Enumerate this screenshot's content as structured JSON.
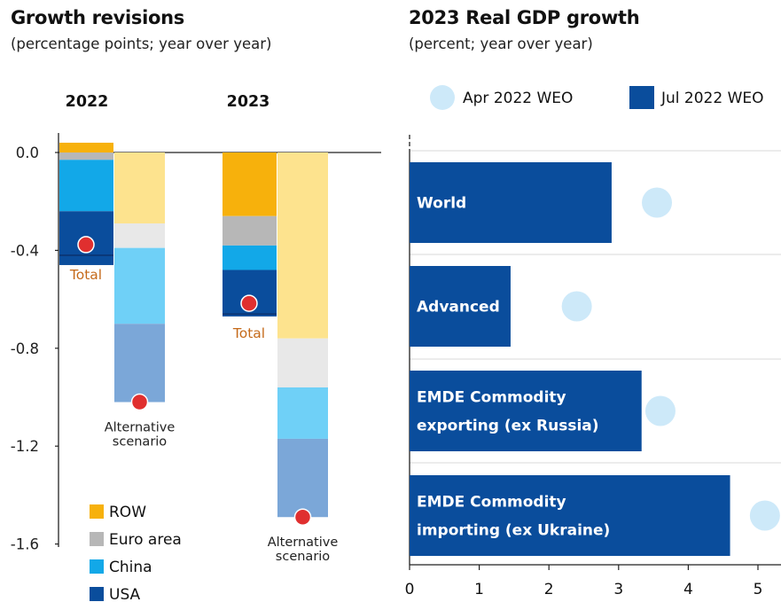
{
  "left_panel": {
    "title": "Growth revisions",
    "subtitle": "(percentage points; year over year)"
  },
  "right_panel": {
    "title": "2023 Real GDP growth",
    "subtitle": "(percent; year over year)"
  },
  "colors": {
    "ROW": "#f7b10c",
    "Euro area": "#b7b7b7",
    "China": "#12a8e8",
    "USA": "#0a4d9c",
    "ROW_alt": "#fde38e",
    "Euro area_alt": "#e8e8e8",
    "China_alt": "#6fd0f7",
    "USA_alt": "#7ba7d8",
    "apr": "#cde9f9",
    "jul": "#0a4d9c",
    "total_dot": "#e02f2f",
    "total_text": "#c56a1a"
  },
  "chart_data": [
    {
      "type": "bar",
      "stacked": true,
      "title": "Growth revisions",
      "subtitle": "(percentage points; year over year)",
      "ylim": [
        -1.6,
        0.0
      ],
      "yticks": [
        "0.0",
        "-0.4",
        "-0.8",
        "-1.2",
        "-1.6"
      ],
      "ytick_values": [
        0.0,
        -0.4,
        -0.8,
        -1.2,
        -1.6
      ],
      "grid": false,
      "legend_position": "bottom-left",
      "legend": [
        "ROW",
        "Euro area",
        "China",
        "USA"
      ],
      "groups": [
        {
          "label": "2022",
          "bars": [
            {
              "name": "baseline",
              "segments": [
                {
                  "series": "ROW",
                  "value": 0.04
                },
                {
                  "series": "Euro area",
                  "value": -0.03
                },
                {
                  "series": "China",
                  "value": -0.21
                },
                {
                  "series": "USA",
                  "value": -0.22
                }
              ],
              "total": -0.42,
              "total_label": "Total"
            },
            {
              "name": "alternative",
              "segments": [
                {
                  "series": "ROW",
                  "value": -0.29
                },
                {
                  "series": "Euro area",
                  "value": -0.1
                },
                {
                  "series": "China",
                  "value": -0.31
                },
                {
                  "series": "USA",
                  "value": -0.32
                }
              ],
              "total": -1.02,
              "total_label": "Alternative scenario"
            }
          ]
        },
        {
          "label": "2023",
          "bars": [
            {
              "name": "baseline",
              "segments": [
                {
                  "series": "ROW",
                  "value": -0.26
                },
                {
                  "series": "Euro area",
                  "value": -0.12
                },
                {
                  "series": "China",
                  "value": -0.1
                },
                {
                  "series": "USA",
                  "value": -0.19
                }
              ],
              "total": -0.66,
              "total_label": "Total"
            },
            {
              "name": "alternative",
              "segments": [
                {
                  "series": "ROW",
                  "value": -0.76
                },
                {
                  "series": "Euro area",
                  "value": -0.2
                },
                {
                  "series": "China",
                  "value": -0.21
                },
                {
                  "series": "USA",
                  "value": -0.32
                }
              ],
              "total": -1.49,
              "total_label": "Alternative scenario"
            }
          ]
        }
      ]
    },
    {
      "type": "bar",
      "orientation": "horizontal",
      "title": "2023 Real GDP growth",
      "subtitle": "(percent; year over year)",
      "xlim": [
        0,
        5.35
      ],
      "xticks": [
        "0",
        "1",
        "2",
        "3",
        "4",
        "5"
      ],
      "xtick_values": [
        0,
        1,
        2,
        3,
        4,
        5
      ],
      "legend_position": "top",
      "categories": [
        "World",
        "Advanced",
        "EMDE Commodity exporting (ex Russia)",
        "EMDE Commodity importing (ex Ukraine)"
      ],
      "category_lines": [
        [
          "World"
        ],
        [
          "Advanced"
        ],
        [
          "EMDE Commodity",
          "exporting (ex Russia)"
        ],
        [
          "EMDE Commodity",
          "importing (ex Ukraine)"
        ]
      ],
      "series": [
        {
          "name": "Apr 2022 WEO",
          "marker": "dot",
          "values": [
            3.55,
            2.4,
            3.6,
            5.1
          ]
        },
        {
          "name": "Jul 2022 WEO",
          "marker": "bar",
          "values": [
            2.9,
            1.45,
            3.33,
            4.6
          ]
        }
      ]
    }
  ]
}
